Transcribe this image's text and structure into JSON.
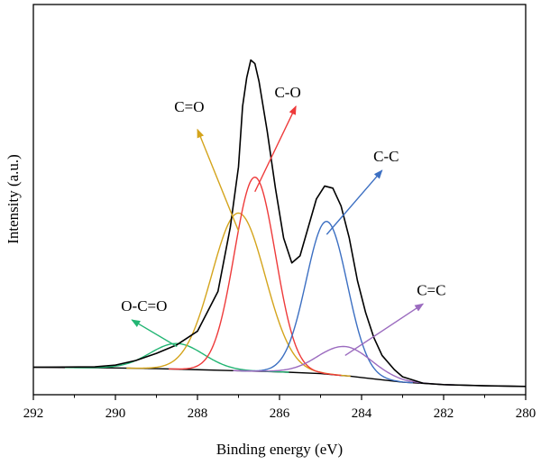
{
  "chart_data": {
    "type": "line",
    "title": "",
    "xlabel": "Binding energy (eV)",
    "ylabel": "Intensity (a.u.)",
    "xlim": [
      292,
      280
    ],
    "x_reversed": true,
    "ylim": [
      0,
      100
    ],
    "y_ticks_shown": false,
    "grid": false,
    "legend": "none",
    "x_ticks": [
      "292",
      "290",
      "288",
      "286",
      "284",
      "282",
      "280"
    ],
    "baseline": {
      "name": "",
      "color": "#000000",
      "points": [
        [
          292.0,
          5.7
        ],
        [
          291.0,
          5.6
        ],
        [
          290.0,
          5.5
        ],
        [
          289.0,
          5.3
        ],
        [
          288.0,
          5.0
        ],
        [
          287.0,
          4.7
        ],
        [
          286.0,
          4.4
        ],
        [
          285.0,
          3.9
        ],
        [
          284.3,
          3.2
        ],
        [
          284.0,
          2.8
        ],
        [
          283.0,
          1.5
        ],
        [
          282.0,
          0.8
        ],
        [
          281.0,
          0.5
        ],
        [
          280.0,
          0.3
        ]
      ]
    },
    "envelope": {
      "name": "",
      "color": "#000000",
      "points": [
        [
          292.0,
          5.7
        ],
        [
          290.5,
          5.8
        ],
        [
          290.0,
          6.3
        ],
        [
          289.5,
          7.6
        ],
        [
          289.0,
          9.6
        ],
        [
          288.5,
          12.0
        ],
        [
          288.0,
          15.8
        ],
        [
          287.5,
          27.0
        ],
        [
          287.2,
          45.0
        ],
        [
          287.0,
          62.0
        ],
        [
          286.9,
          79.0
        ],
        [
          286.8,
          87.0
        ],
        [
          286.7,
          92.0
        ],
        [
          286.6,
          91.0
        ],
        [
          286.5,
          86.0
        ],
        [
          286.3,
          72.0
        ],
        [
          286.1,
          56.0
        ],
        [
          285.9,
          42.0
        ],
        [
          285.7,
          35.0
        ],
        [
          285.5,
          37.0
        ],
        [
          285.3,
          45.0
        ],
        [
          285.1,
          53.0
        ],
        [
          284.9,
          56.6
        ],
        [
          284.7,
          56.0
        ],
        [
          284.5,
          51.0
        ],
        [
          284.3,
          42.0
        ],
        [
          284.1,
          30.0
        ],
        [
          283.9,
          21.0
        ],
        [
          283.7,
          14.0
        ],
        [
          283.5,
          9.0
        ],
        [
          283.2,
          5.0
        ],
        [
          283.0,
          3.0
        ],
        [
          282.5,
          1.2
        ],
        [
          282.0,
          0.8
        ],
        [
          281.0,
          0.5
        ],
        [
          280.0,
          0.3
        ]
      ]
    },
    "components": [
      {
        "name": "O-C=O",
        "label": "O-C=O",
        "color": "#22b573",
        "center": 288.5,
        "height": 7.2,
        "sigma": 0.65
      },
      {
        "name": "C=O",
        "label": "C=O",
        "color": "#d4a41c",
        "center": 287.0,
        "height": 44.3,
        "sigma": 0.65
      },
      {
        "name": "C-O",
        "label": "C-O",
        "color": "#ee3a3a",
        "center": 286.6,
        "height": 54.5,
        "sigma": 0.5
      },
      {
        "name": "C-C",
        "label": "C-C",
        "color": "#3c6fc2",
        "center": 284.85,
        "height": 42.9,
        "sigma": 0.5
      },
      {
        "name": "C=C",
        "label": "C=C",
        "color": "#9b6bbf",
        "center": 284.4,
        "height": 8.2,
        "sigma": 0.65
      }
    ],
    "annotations": [
      {
        "text": "O-C=O",
        "color": "#22b573",
        "label_x": 289.3,
        "label_y": 21.5,
        "arrow_from": [
          288.5,
          11.5
        ],
        "arrow_to": [
          289.6,
          19.0
        ]
      },
      {
        "text": "C=O",
        "color": "#d4a41c",
        "label_x": 288.2,
        "label_y": 77.5,
        "arrow_from": [
          287.0,
          44.0
        ],
        "arrow_to": [
          288.0,
          72.5
        ]
      },
      {
        "text": "C-O",
        "color": "#ee3a3a",
        "label_x": 285.8,
        "label_y": 81.5,
        "arrow_from": [
          286.6,
          55.0
        ],
        "arrow_to": [
          285.6,
          79.0
        ]
      },
      {
        "text": "C-C",
        "color": "#3c6fc2",
        "label_x": 283.4,
        "label_y": 63.5,
        "arrow_from": [
          284.85,
          43.0
        ],
        "arrow_to": [
          283.5,
          61.0
        ]
      },
      {
        "text": "C=C",
        "color": "#9b6bbf",
        "label_x": 282.3,
        "label_y": 26.0,
        "arrow_from": [
          284.4,
          9.0
        ],
        "arrow_to": [
          282.5,
          23.5
        ]
      }
    ]
  }
}
